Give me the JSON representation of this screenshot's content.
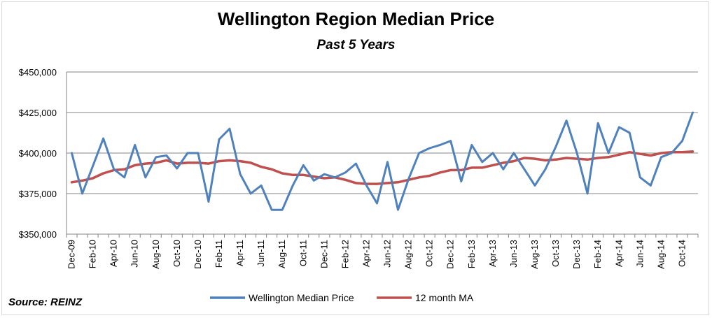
{
  "chart_data": {
    "type": "line",
    "title": "Wellington Region Median Price",
    "subtitle": "Past 5 Years",
    "source": "Source: REINZ",
    "ylim": [
      350000,
      450000
    ],
    "yticks": [
      "$350,000",
      "$375,000",
      "$400,000",
      "$425,000",
      "$450,000"
    ],
    "ytick_values": [
      350000,
      375000,
      400000,
      425000,
      450000
    ],
    "grid": true,
    "legend_position": "bottom",
    "x": [
      "Dec-09",
      "Jan-10",
      "Feb-10",
      "Mar-10",
      "Apr-10",
      "May-10",
      "Jun-10",
      "Jul-10",
      "Aug-10",
      "Sep-10",
      "Oct-10",
      "Nov-10",
      "Dec-10",
      "Jan-11",
      "Feb-11",
      "Mar-11",
      "Apr-11",
      "May-11",
      "Jun-11",
      "Jul-11",
      "Aug-11",
      "Sep-11",
      "Oct-11",
      "Nov-11",
      "Dec-11",
      "Jan-12",
      "Feb-12",
      "Mar-12",
      "Apr-12",
      "May-12",
      "Jun-12",
      "Jul-12",
      "Aug-12",
      "Sep-12",
      "Oct-12",
      "Nov-12",
      "Dec-12",
      "Jan-13",
      "Feb-13",
      "Mar-13",
      "Apr-13",
      "May-13",
      "Jun-13",
      "Jul-13",
      "Aug-13",
      "Sep-13",
      "Oct-13",
      "Nov-13",
      "Dec-13",
      "Jan-14",
      "Feb-14",
      "Mar-14",
      "Apr-14",
      "May-14",
      "Jun-14",
      "Jul-14",
      "Aug-14",
      "Sep-14",
      "Oct-14",
      "Nov-14"
    ],
    "x_tick_labels": [
      "Dec-09",
      "Feb-10",
      "Apr-10",
      "Jun-10",
      "Aug-10",
      "Oct-10",
      "Dec-10",
      "Feb-11",
      "Apr-11",
      "Jun-11",
      "Aug-11",
      "Oct-11",
      "Dec-11",
      "Feb-12",
      "Apr-12",
      "Jun-12",
      "Aug-12",
      "Oct-12",
      "Dec-12",
      "Feb-13",
      "Apr-13",
      "Jun-13",
      "Aug-13",
      "Oct-13",
      "Dec-13",
      "Feb-14",
      "Apr-14",
      "Jun-14",
      "Aug-14",
      "Oct-14"
    ],
    "series": [
      {
        "name": "Wellington Median Price",
        "color": "#4f81bd",
        "values": [
          400000,
          375000,
          392000,
          409000,
          390000,
          385000,
          405000,
          385000,
          397500,
          398500,
          390500,
          400000,
          400000,
          370000,
          408500,
          415000,
          387000,
          375000,
          380000,
          365000,
          365000,
          380000,
          392500,
          383000,
          387000,
          385000,
          388000,
          393500,
          380000,
          369000,
          394500,
          365000,
          384000,
          400000,
          403000,
          405000,
          407500,
          382500,
          405000,
          394500,
          400000,
          390000,
          400000,
          390000,
          380000,
          390000,
          404000,
          420000,
          400000,
          375000,
          418500,
          400000,
          416000,
          412500,
          385000,
          380000,
          397500,
          400000,
          407500,
          425000
        ]
      },
      {
        "name": "12 month MA",
        "color": "#c0504d",
        "values": [
          382000,
          383000,
          384500,
          387500,
          389500,
          390000,
          392500,
          393500,
          394000,
          395500,
          393500,
          394000,
          394000,
          393500,
          395000,
          395500,
          395000,
          394000,
          391500,
          390000,
          387500,
          386500,
          386500,
          385500,
          384500,
          385000,
          383500,
          381500,
          381000,
          381000,
          381500,
          382000,
          383500,
          385000,
          386000,
          388000,
          389500,
          389500,
          391000,
          391000,
          392500,
          394000,
          395000,
          397000,
          396500,
          395500,
          396000,
          397000,
          396500,
          396000,
          397000,
          397500,
          399000,
          400500,
          399500,
          398500,
          400000,
          400500,
          400500,
          401000
        ]
      }
    ]
  }
}
